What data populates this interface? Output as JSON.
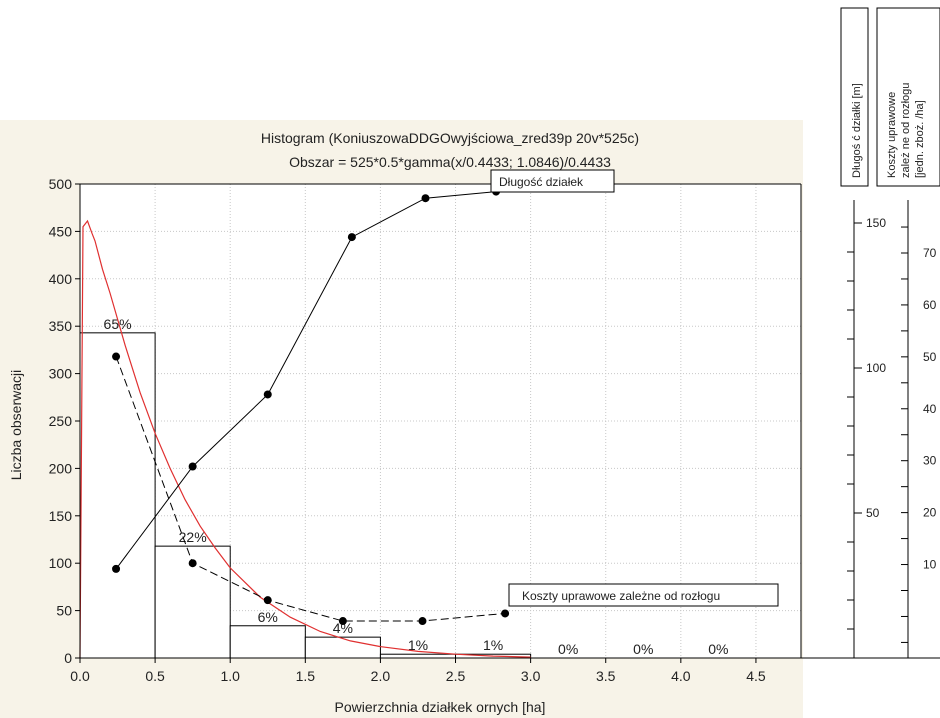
{
  "chart_data": {
    "type": "bar",
    "title": "Histogram (KoniuszowaDDGOwyjściowa_zred39p 20v*525c)",
    "subtitle": "Obszar = 525*0.5*gamma(x/0.4433; 1.0846)/0.4433",
    "xlabel": "Powierzchnia działkek ornych [ha]",
    "ylabel": "Liczba obserwacji",
    "xlim": [
      0,
      4.8
    ],
    "ylim": [
      0,
      500
    ],
    "xticks": [
      "0.0",
      "0.5",
      "1.0",
      "1.5",
      "2.0",
      "2.5",
      "3.0",
      "3.5",
      "4.0",
      "4.5"
    ],
    "yticks": [
      "0",
      "50",
      "100",
      "150",
      "200",
      "250",
      "300",
      "350",
      "400",
      "450",
      "500"
    ],
    "bins": [
      {
        "from": 0.0,
        "to": 0.5,
        "value": 343,
        "label": "65%"
      },
      {
        "from": 0.5,
        "to": 1.0,
        "value": 118,
        "label": "22%"
      },
      {
        "from": 1.0,
        "to": 1.5,
        "value": 34,
        "label": "6%"
      },
      {
        "from": 1.5,
        "to": 2.0,
        "value": 22,
        "label": "4%"
      },
      {
        "from": 2.0,
        "to": 2.5,
        "value": 4,
        "label": "1%"
      },
      {
        "from": 2.5,
        "to": 3.0,
        "value": 4,
        "label": "1%"
      },
      {
        "from": 3.0,
        "to": 3.5,
        "value": 0,
        "label": "0%"
      },
      {
        "from": 3.5,
        "to": 4.0,
        "value": 0,
        "label": "0%"
      },
      {
        "from": 4.0,
        "to": 4.5,
        "value": 0,
        "label": "0%"
      }
    ],
    "fit_curve": {
      "color": "#e03030",
      "x": [
        0.0,
        0.02,
        0.05,
        0.08,
        0.1,
        0.15,
        0.2,
        0.3,
        0.4,
        0.5,
        0.6,
        0.7,
        0.8,
        0.9,
        1.0,
        1.2,
        1.4,
        1.6,
        1.8,
        2.0,
        2.25,
        2.5,
        2.75,
        3.0
      ],
      "y": [
        0,
        455,
        461,
        448,
        440,
        410,
        385,
        330,
        280,
        237,
        200,
        167,
        139,
        116,
        95,
        64,
        43,
        28,
        18,
        12,
        7,
        4,
        2,
        1
      ]
    },
    "series": [
      {
        "name": "Długość działek",
        "style": "solid",
        "x": [
          0.24,
          0.75,
          1.25,
          1.81,
          2.3,
          2.77
        ],
        "y": [
          94,
          202,
          278,
          444,
          485,
          492
        ]
      },
      {
        "name": "Koszty uprawowe zależne od rozłogu",
        "style": "dashed",
        "x": [
          0.24,
          0.75,
          1.25,
          1.75,
          2.28,
          2.83
        ],
        "y": [
          318,
          100,
          61,
          39,
          39,
          47
        ]
      }
    ],
    "right_axes": [
      {
        "label": "Długoś ć  działki [m]",
        "ticks": [
          "150",
          "100",
          "50"
        ]
      },
      {
        "label_lines": [
          "Koszty uprawowe",
          "zależ ne od rozłogu",
          "[jedn. zboż. /ha]"
        ],
        "ticks": [
          "70",
          "60",
          "50",
          "40",
          "30",
          "20",
          "10"
        ]
      }
    ],
    "grid": true,
    "colors": {
      "background": "#f7f3e8",
      "plot": "#ffffff",
      "grid": "#c8c8c8",
      "fit": "#e03030",
      "series": "#000000"
    }
  }
}
